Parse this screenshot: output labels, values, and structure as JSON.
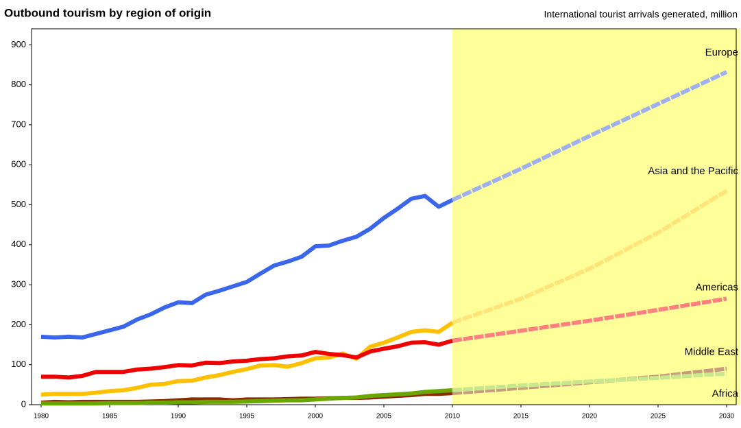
{
  "chart_data": {
    "type": "line",
    "title": "Outbound tourism by region of origin",
    "subtitle": "International tourist arrivals generated, million",
    "x": [
      1980,
      1981,
      1982,
      1983,
      1984,
      1985,
      1986,
      1987,
      1988,
      1989,
      1990,
      1991,
      1992,
      1993,
      1994,
      1995,
      1996,
      1997,
      1998,
      1999,
      2000,
      2001,
      2002,
      2003,
      2004,
      2005,
      2006,
      2007,
      2008,
      2009,
      2010,
      2015,
      2020,
      2025,
      2030
    ],
    "forecast_from": 2010,
    "forecast_shade": "#ffff99",
    "series": [
      {
        "name": "Europe",
        "color": "#3a66ec",
        "forecast_color": "#9fb0f0",
        "values": [
          170,
          168,
          170,
          168,
          177,
          186,
          195,
          213,
          226,
          243,
          256,
          254,
          275,
          285,
          296,
          307,
          328,
          348,
          358,
          370,
          396,
          398,
          410,
          420,
          440,
          467,
          490,
          515,
          522,
          495,
          512,
          590,
          672,
          752,
          832
        ]
      },
      {
        "name": "Asia and the Pacific",
        "color": "#ffc000",
        "forecast_color": "#ffe47a",
        "values": [
          25,
          27,
          27,
          27,
          30,
          34,
          36,
          42,
          50,
          52,
          59,
          60,
          68,
          74,
          82,
          89,
          98,
          99,
          95,
          104,
          116,
          118,
          128,
          115,
          145,
          155,
          168,
          182,
          186,
          182,
          205,
          265,
          340,
          430,
          535
        ]
      },
      {
        "name": "Americas",
        "color": "#ee0000",
        "forecast_color": "#ff8080",
        "values": [
          70,
          70,
          68,
          72,
          82,
          82,
          82,
          88,
          90,
          94,
          99,
          98,
          105,
          104,
          108,
          110,
          114,
          116,
          121,
          123,
          132,
          127,
          124,
          118,
          133,
          140,
          146,
          155,
          156,
          150,
          160,
          185,
          210,
          237,
          265
        ]
      },
      {
        "name": "Middle East",
        "color": "#8b2c00",
        "forecast_color": "#c89a7e",
        "values": [
          5,
          7,
          6,
          7,
          7,
          7,
          7,
          7,
          8,
          9,
          11,
          13,
          13,
          13,
          11,
          13,
          13,
          13,
          14,
          15,
          15,
          16,
          17,
          17,
          18,
          20,
          22,
          24,
          27,
          27,
          29,
          42,
          56,
          70,
          90
        ]
      },
      {
        "name": "Africa",
        "color": "#6aa800",
        "forecast_color": "#c8e890",
        "values": [
          3,
          3,
          3,
          3,
          3,
          4,
          4,
          4,
          5,
          5,
          6,
          6,
          7,
          7,
          7,
          8,
          9,
          10,
          11,
          11,
          13,
          15,
          17,
          18,
          22,
          24,
          26,
          28,
          32,
          34,
          36,
          48,
          58,
          67,
          78
        ]
      }
    ],
    "xlim": [
      1979.3,
      2030.7
    ],
    "xticks": [
      1980,
      1985,
      1990,
      1995,
      2000,
      2005,
      2010,
      2015,
      2020,
      2025,
      2030
    ],
    "ylim": [
      0,
      940
    ],
    "yticks": [
      0,
      100,
      200,
      300,
      400,
      500,
      600,
      700,
      800,
      900
    ]
  }
}
